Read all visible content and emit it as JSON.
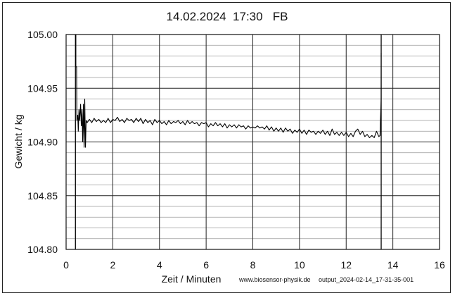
{
  "chart_data": {
    "type": "line",
    "title": "14.02.2024  17:30   FB",
    "xlabel": "Zeit / Minuten",
    "ylabel": "Gewicht / kg",
    "xlim": [
      0,
      16
    ],
    "ylim": [
      104.8,
      105.0
    ],
    "x_ticks": [
      0,
      2,
      4,
      6,
      8,
      10,
      12,
      14,
      16
    ],
    "x_tick_labels": [
      "0",
      "2",
      "4",
      "6",
      "8",
      "10",
      "12",
      "14",
      "16"
    ],
    "y_ticks": [
      104.8,
      104.85,
      104.9,
      104.95,
      105.0
    ],
    "y_tick_labels": [
      "104.80",
      "104.85",
      "104.90",
      "104.95",
      "105.00"
    ],
    "grid": true,
    "footer_left": "www.biosensor-physik.de",
    "footer_right": "output_2024-02-14_17-31-35-001",
    "markers_x": [
      0.4,
      13.5
    ],
    "series": [
      {
        "color": "#000000",
        "points": [
          [
            0.42,
            105.0
          ],
          [
            0.42,
            104.97
          ],
          [
            0.45,
            104.97
          ],
          [
            0.46,
            104.92
          ],
          [
            0.5,
            104.925
          ],
          [
            0.52,
            104.91
          ],
          [
            0.55,
            104.93
          ],
          [
            0.58,
            104.92
          ],
          [
            0.62,
            104.935
          ],
          [
            0.65,
            104.915
          ],
          [
            0.68,
            104.93
          ],
          [
            0.71,
            104.9
          ],
          [
            0.74,
            104.935
          ],
          [
            0.77,
            104.895
          ],
          [
            0.8,
            104.94
          ],
          [
            0.83,
            104.895
          ],
          [
            0.86,
            104.92
          ],
          [
            0.9,
            104.918
          ],
          [
            1.0,
            104.921
          ],
          [
            1.1,
            104.918
          ],
          [
            1.2,
            104.922
          ],
          [
            1.3,
            104.919
          ],
          [
            1.4,
            104.921
          ],
          [
            1.5,
            104.918
          ],
          [
            1.6,
            104.92
          ],
          [
            1.7,
            104.918
          ],
          [
            1.8,
            104.922
          ],
          [
            1.9,
            104.918
          ],
          [
            2.0,
            104.921
          ],
          [
            2.1,
            104.92
          ],
          [
            2.2,
            104.923
          ],
          [
            2.3,
            104.919
          ],
          [
            2.4,
            104.921
          ],
          [
            2.5,
            104.918
          ],
          [
            2.6,
            104.922
          ],
          [
            2.7,
            104.92
          ],
          [
            2.8,
            104.921
          ],
          [
            2.9,
            104.918
          ],
          [
            3.0,
            104.922
          ],
          [
            3.1,
            104.919
          ],
          [
            3.2,
            104.922
          ],
          [
            3.3,
            104.917
          ],
          [
            3.4,
            104.921
          ],
          [
            3.5,
            104.918
          ],
          [
            3.6,
            104.92
          ],
          [
            3.7,
            104.916
          ],
          [
            3.8,
            104.921
          ],
          [
            3.9,
            104.918
          ],
          [
            4.0,
            104.92
          ],
          [
            4.1,
            104.917
          ],
          [
            4.2,
            104.919
          ],
          [
            4.3,
            104.916
          ],
          [
            4.4,
            104.92
          ],
          [
            4.5,
            104.917
          ],
          [
            4.6,
            104.919
          ],
          [
            4.7,
            104.918
          ],
          [
            4.8,
            104.92
          ],
          [
            4.9,
            104.917
          ],
          [
            5.0,
            104.919
          ],
          [
            5.1,
            104.916
          ],
          [
            5.2,
            104.92
          ],
          [
            5.3,
            104.917
          ],
          [
            5.4,
            104.919
          ],
          [
            5.5,
            104.917
          ],
          [
            5.6,
            104.918
          ],
          [
            5.7,
            104.915
          ],
          [
            5.8,
            104.918
          ],
          [
            5.9,
            104.917
          ],
          [
            6.0,
            104.918
          ],
          [
            6.1,
            104.914
          ],
          [
            6.2,
            104.917
          ],
          [
            6.3,
            104.915
          ],
          [
            6.4,
            104.918
          ],
          [
            6.5,
            104.915
          ],
          [
            6.6,
            104.917
          ],
          [
            6.7,
            104.914
          ],
          [
            6.8,
            104.917
          ],
          [
            6.9,
            104.913
          ],
          [
            7.0,
            104.916
          ],
          [
            7.1,
            104.914
          ],
          [
            7.2,
            104.916
          ],
          [
            7.3,
            104.913
          ],
          [
            7.4,
            104.916
          ],
          [
            7.5,
            104.914
          ],
          [
            7.6,
            104.915
          ],
          [
            7.7,
            104.912
          ],
          [
            7.8,
            104.915
          ],
          [
            7.9,
            104.913
          ],
          [
            8.0,
            104.914
          ],
          [
            8.1,
            104.913
          ],
          [
            8.2,
            104.915
          ],
          [
            8.3,
            104.913
          ],
          [
            8.4,
            104.914
          ],
          [
            8.5,
            104.912
          ],
          [
            8.6,
            104.915
          ],
          [
            8.7,
            104.911
          ],
          [
            8.8,
            104.914
          ],
          [
            8.9,
            104.91
          ],
          [
            9.0,
            104.913
          ],
          [
            9.1,
            104.91
          ],
          [
            9.2,
            104.913
          ],
          [
            9.3,
            104.909
          ],
          [
            9.4,
            104.913
          ],
          [
            9.5,
            104.91
          ],
          [
            9.6,
            104.912
          ],
          [
            9.7,
            104.908
          ],
          [
            9.8,
            104.911
          ],
          [
            9.9,
            104.909
          ],
          [
            10.0,
            104.912
          ],
          [
            10.1,
            104.908
          ],
          [
            10.2,
            104.911
          ],
          [
            10.3,
            104.907
          ],
          [
            10.4,
            104.911
          ],
          [
            10.5,
            104.909
          ],
          [
            10.6,
            104.91
          ],
          [
            10.7,
            104.907
          ],
          [
            10.8,
            104.91
          ],
          [
            10.9,
            104.908
          ],
          [
            11.0,
            104.911
          ],
          [
            11.1,
            104.907
          ],
          [
            11.2,
            104.91
          ],
          [
            11.3,
            104.906
          ],
          [
            11.4,
            104.912
          ],
          [
            11.5,
            104.907
          ],
          [
            11.6,
            104.909
          ],
          [
            11.7,
            104.906
          ],
          [
            11.8,
            104.909
          ],
          [
            11.9,
            104.906
          ],
          [
            12.0,
            104.909
          ],
          [
            12.1,
            104.905
          ],
          [
            12.2,
            104.908
          ],
          [
            12.3,
            104.905
          ],
          [
            12.4,
            104.91
          ],
          [
            12.5,
            104.912
          ],
          [
            12.6,
            104.907
          ],
          [
            12.7,
            104.91
          ],
          [
            12.8,
            104.905
          ],
          [
            12.9,
            104.907
          ],
          [
            13.0,
            104.904
          ],
          [
            13.1,
            104.906
          ],
          [
            13.2,
            104.904
          ],
          [
            13.3,
            104.91
          ],
          [
            13.4,
            104.905
          ],
          [
            13.45,
            104.906
          ],
          [
            13.5,
            104.94
          ],
          [
            13.5,
            104.983
          ]
        ]
      }
    ]
  }
}
